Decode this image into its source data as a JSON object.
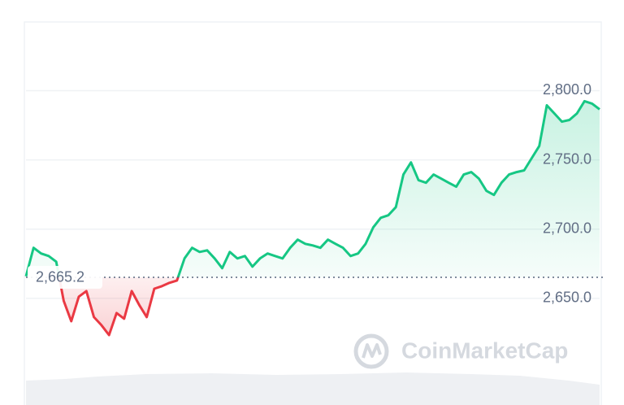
{
  "chart_data": {
    "type": "line",
    "values": [
      2665.9,
      2686.5,
      2682.4,
      2680.6,
      2676.5,
      2648.2,
      2633.5,
      2651.2,
      2655.3,
      2636.5,
      2630.6,
      2623.5,
      2639.4,
      2635.3,
      2655.3,
      2645.3,
      2636.5,
      2657,
      2658.8,
      2661.2,
      2662.9,
      2678.8,
      2686.5,
      2683.5,
      2684.7,
      2678.8,
      2671.8,
      2683.5,
      2678.8,
      2680.6,
      2672.9,
      2678.8,
      2682.4,
      2680.6,
      2678.8,
      2686.5,
      2692.4,
      2689.4,
      2688.2,
      2686.5,
      2692.4,
      2689.4,
      2686.5,
      2680.6,
      2682.4,
      2689.4,
      2701.2,
      2708.2,
      2710,
      2715.9,
      2739.4,
      2748.2,
      2735.3,
      2733.5,
      2739.4,
      2736.5,
      2733.5,
      2730.6,
      2739.4,
      2741.2,
      2736.5,
      2727.6,
      2724.7,
      2733.5,
      2739.4,
      2741.2,
      2742.4,
      2751.2,
      2760,
      2789.4,
      2783.5,
      2777.6,
      2778.8,
      2783.5,
      2792.4,
      2790.6,
      2786.5
    ],
    "baseline": {
      "value": 2665.2,
      "label": "2,665.2"
    },
    "up_color": "#16c784",
    "down_color": "#ea3943",
    "ylim": [
      2573,
      2849
    ],
    "yticks": [
      {
        "value": 2650,
        "label": "2,650.0"
      },
      {
        "value": 2700,
        "label": "2,700.0"
      },
      {
        "value": 2750,
        "label": "2,750.0"
      },
      {
        "value": 2800,
        "label": "2,800.0"
      }
    ],
    "grid": true,
    "watermark": "CoinMarketCap"
  }
}
